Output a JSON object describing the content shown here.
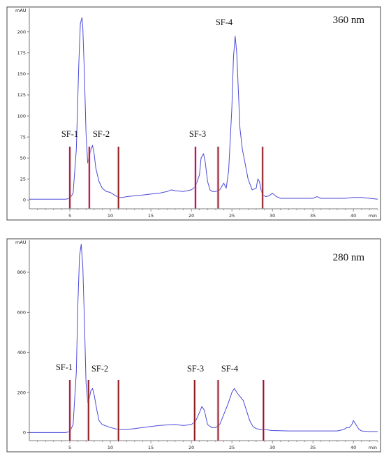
{
  "colors": {
    "trace": "#4a4ad8",
    "marker": "#8b1a1a",
    "marker_highlight": "#f3b7d8",
    "frame": "#444444"
  },
  "chart_data": [
    {
      "type": "line",
      "title": "360 nm",
      "ylabel": "mAU",
      "xlabel": "min",
      "xlim": [
        0,
        43
      ],
      "ylim": [
        -8,
        228
      ],
      "x_ticks": [
        "5",
        "10",
        "15",
        "20",
        "25",
        "30",
        "35",
        "40"
      ],
      "y_ticks": [
        "0",
        "25",
        "50",
        "75",
        "100",
        "125",
        "150",
        "175",
        "200"
      ],
      "fractions": [
        {
          "name": "SF-1",
          "start": 5.0,
          "end": 7.4
        },
        {
          "name": "SF-2",
          "start": 7.4,
          "end": 11.0
        },
        {
          "name": "SF-3",
          "start": 20.5,
          "end": 23.3
        },
        {
          "name": "SF-4",
          "start": 23.3,
          "end": 28.8
        }
      ],
      "fraction_boundaries": [
        5.0,
        7.4,
        11.0,
        20.5,
        23.3,
        28.8
      ],
      "series": [
        {
          "x": [
            0,
            4.5,
            5.0,
            5.4,
            5.8,
            6.1,
            6.3,
            6.5,
            6.6,
            6.8,
            7.0,
            7.2,
            7.4,
            7.6,
            7.8,
            8.0,
            8.2,
            8.6,
            9,
            9.5,
            10,
            10.5,
            11,
            11.5,
            12,
            13,
            14,
            15,
            16,
            17,
            17.5,
            18,
            19,
            20,
            20.5,
            21,
            21.2,
            21.5,
            21.7,
            22,
            22.3,
            22.6,
            23,
            23.5,
            24,
            24.3,
            24.6,
            25,
            25.2,
            25.4,
            25.6,
            25.8,
            26,
            26.3,
            26.6,
            27,
            27.5,
            28,
            28.2,
            28.4,
            28.6,
            28.8,
            29.2,
            29.6,
            30,
            30.5,
            31,
            32,
            33,
            34,
            35,
            35.5,
            36,
            37,
            38,
            39,
            40,
            41,
            42,
            43
          ],
          "values": [
            1,
            1,
            2,
            8,
            60,
            160,
            210,
            217,
            205,
            150,
            80,
            44,
            52,
            60,
            65,
            55,
            38,
            22,
            14,
            10,
            9,
            6,
            3,
            3,
            4,
            5,
            6,
            7,
            8,
            10,
            12,
            11,
            10,
            12,
            16,
            30,
            50,
            55,
            46,
            22,
            12,
            10,
            10,
            12,
            20,
            14,
            35,
            110,
            170,
            195,
            175,
            130,
            85,
            60,
            45,
            25,
            12,
            14,
            25,
            22,
            12,
            6,
            4,
            5,
            8,
            4,
            2,
            2,
            2,
            2,
            2,
            4,
            2,
            2,
            2,
            2,
            3,
            3,
            2,
            1
          ]
        }
      ]
    },
    {
      "type": "line",
      "title": "280 nm",
      "ylabel": "mAU",
      "xlabel": "min",
      "xlim": [
        0,
        43
      ],
      "ylim": [
        -30,
        960
      ],
      "x_ticks": [
        "5",
        "10",
        "15",
        "20",
        "25",
        "30",
        "35",
        "40"
      ],
      "y_ticks": [
        "0",
        "200",
        "400",
        "600",
        "800"
      ],
      "fractions": [
        {
          "name": "SF-1",
          "start": 5.0,
          "end": 7.3
        },
        {
          "name": "SF-2",
          "start": 7.3,
          "end": 11.0
        },
        {
          "name": "SF-3",
          "start": 20.4,
          "end": 23.3
        },
        {
          "name": "SF-4",
          "start": 23.3,
          "end": 28.9
        }
      ],
      "fraction_boundaries": [
        5.0,
        7.3,
        11.0,
        20.4,
        23.3,
        28.9
      ],
      "series": [
        {
          "x": [
            0,
            4.5,
            5.0,
            5.4,
            5.8,
            6.0,
            6.2,
            6.4,
            6.6,
            6.8,
            7.0,
            7.2,
            7.4,
            7.6,
            7.8,
            8.0,
            8.3,
            8.6,
            9,
            10,
            11,
            12,
            13,
            14,
            15,
            16,
            17,
            18,
            19,
            20,
            20.5,
            21,
            21.3,
            21.6,
            22,
            22.5,
            23,
            23.5,
            24,
            24.5,
            25,
            25.3,
            25.6,
            26,
            26.4,
            26.8,
            27.2,
            27.6,
            28,
            28.5,
            29,
            30,
            32,
            34,
            36,
            38,
            38.8,
            39.2,
            39.5,
            39.8,
            40.0,
            40.3,
            40.7,
            41,
            42,
            43
          ],
          "values": [
            0,
            0,
            5,
            40,
            300,
            650,
            880,
            940,
            830,
            560,
            250,
            150,
            170,
            210,
            220,
            190,
            120,
            60,
            40,
            25,
            15,
            15,
            20,
            25,
            30,
            35,
            38,
            40,
            35,
            40,
            55,
            100,
            130,
            110,
            40,
            25,
            25,
            40,
            90,
            140,
            200,
            220,
            200,
            180,
            160,
            110,
            60,
            30,
            20,
            15,
            15,
            10,
            8,
            8,
            8,
            8,
            15,
            25,
            25,
            40,
            60,
            40,
            15,
            8,
            5,
            5
          ]
        }
      ]
    }
  ]
}
